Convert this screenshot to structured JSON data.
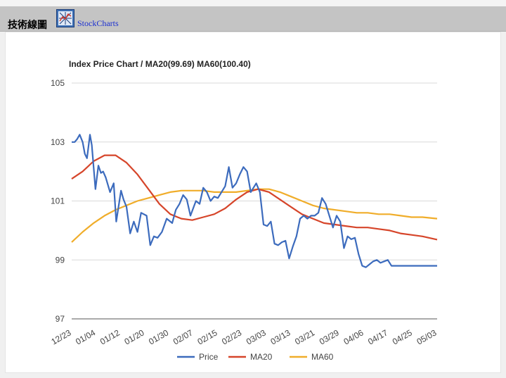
{
  "header": {
    "title": "技術線圖",
    "logo_text": "StockCharts"
  },
  "colors": {
    "price": "#3c6bbd",
    "ma20": "#d6452a",
    "ma60": "#f0ad2a",
    "grid": "#d9d9d9",
    "header_bg": "#c4c4c4"
  },
  "chart_data": {
    "type": "line",
    "title": "Index Price Chart / MA20(99.69) MA60(100.40)",
    "xlabel": "",
    "ylabel": "",
    "ylim": [
      97,
      105
    ],
    "yticks": [
      97,
      99,
      101,
      103,
      105
    ],
    "xticks": [
      "12/23",
      "01/04",
      "01/12",
      "01/20",
      "01/30",
      "02/07",
      "02/15",
      "02/23",
      "03/03",
      "03/13",
      "03/21",
      "03/29",
      "04/06",
      "04/17",
      "04/25",
      "05/03"
    ],
    "grid": true,
    "legend_position": "bottom",
    "x_range": [
      0,
      100
    ],
    "series": [
      {
        "name": "Price",
        "x": [
          0,
          0.8,
          1.5,
          2.2,
          3,
          3.6,
          4.2,
          5,
          5.5,
          6.5,
          7.3,
          8,
          8.6,
          9.3,
          10.5,
          11.5,
          12.2,
          13.5,
          14.2,
          15,
          16,
          17,
          18,
          19,
          20.5,
          21.5,
          22.5,
          23.5,
          24.7,
          26,
          27.5,
          28.5,
          29.5,
          30.5,
          31.5,
          32.5,
          34,
          35,
          36,
          37,
          38,
          39,
          40,
          41,
          42,
          43,
          44,
          45,
          46,
          47,
          48,
          49,
          50.5,
          51.5,
          52.5,
          53.5,
          54.5,
          55.5,
          56.5,
          57.5,
          58.5,
          59.5,
          60.5,
          61.5,
          62.5,
          63.5,
          64.5,
          65.5,
          66.5,
          67.5,
          68.5,
          69.5,
          70.5,
          71.5,
          72.5,
          73.5,
          74.5,
          75.5,
          76.5,
          77.5,
          78.5,
          79.5,
          80.5,
          81.5,
          82.5,
          83.5,
          84.5,
          85.5,
          86.5,
          87.5,
          88.5,
          89.5,
          90.5,
          91.5,
          92.5,
          93.5,
          94.5,
          95.5,
          96.5,
          97.5,
          98.5,
          100
        ],
        "values": [
          103.0,
          103.0,
          103.1,
          103.25,
          103.0,
          102.6,
          102.45,
          103.25,
          102.9,
          101.4,
          102.2,
          101.95,
          102.0,
          101.8,
          101.3,
          101.6,
          100.3,
          101.35,
          101.05,
          100.8,
          99.9,
          100.3,
          99.95,
          100.6,
          100.5,
          99.5,
          99.8,
          99.75,
          99.95,
          100.4,
          100.25,
          100.7,
          100.9,
          101.2,
          101.05,
          100.5,
          101.0,
          100.9,
          101.45,
          101.3,
          101.0,
          101.15,
          101.1,
          101.3,
          101.5,
          102.15,
          101.45,
          101.6,
          101.9,
          102.15,
          102.0,
          101.3,
          101.6,
          101.3,
          100.2,
          100.15,
          100.3,
          99.55,
          99.5,
          99.6,
          99.65,
          99.05,
          99.45,
          99.8,
          100.4,
          100.5,
          100.4,
          100.5,
          100.5,
          100.6,
          101.1,
          100.9,
          100.5,
          100.1,
          100.5,
          100.3,
          99.4,
          99.8,
          99.7,
          99.75,
          99.2,
          98.8,
          98.75,
          98.85,
          98.95,
          99.0,
          98.9,
          98.95,
          99.0,
          98.8,
          98.8,
          98.8,
          98.8,
          98.8,
          98.8,
          98.8,
          98.8,
          98.8,
          98.8,
          98.8,
          98.8,
          98.8
        ],
        "color": "#3c6bbd"
      },
      {
        "name": "MA20",
        "x": [
          0,
          3,
          6,
          9,
          12,
          15,
          18,
          21,
          24,
          27,
          30,
          33,
          36,
          39,
          42,
          45,
          48,
          51,
          54,
          57,
          60,
          63,
          66,
          69,
          72,
          75,
          78,
          81,
          84,
          87,
          90,
          93,
          96,
          100
        ],
        "values": [
          101.75,
          102.0,
          102.35,
          102.55,
          102.55,
          102.3,
          101.9,
          101.4,
          100.9,
          100.55,
          100.4,
          100.35,
          100.45,
          100.55,
          100.75,
          101.05,
          101.3,
          101.4,
          101.3,
          101.05,
          100.8,
          100.55,
          100.4,
          100.25,
          100.2,
          100.15,
          100.1,
          100.1,
          100.05,
          100.0,
          99.9,
          99.85,
          99.8,
          99.69
        ],
        "color": "#d6452a"
      },
      {
        "name": "MA60",
        "x": [
          0,
          3,
          6,
          9,
          12,
          15,
          18,
          21,
          24,
          27,
          30,
          33,
          36,
          39,
          42,
          45,
          48,
          51,
          54,
          57,
          60,
          63,
          66,
          69,
          72,
          75,
          78,
          81,
          84,
          87,
          90,
          93,
          96,
          100
        ],
        "values": [
          99.6,
          99.95,
          100.25,
          100.5,
          100.7,
          100.85,
          101.0,
          101.1,
          101.2,
          101.3,
          101.35,
          101.35,
          101.35,
          101.3,
          101.3,
          101.3,
          101.35,
          101.4,
          101.4,
          101.3,
          101.15,
          101.0,
          100.85,
          100.75,
          100.7,
          100.65,
          100.6,
          100.6,
          100.55,
          100.55,
          100.5,
          100.45,
          100.45,
          100.4
        ],
        "color": "#f0ad2a"
      }
    ]
  }
}
